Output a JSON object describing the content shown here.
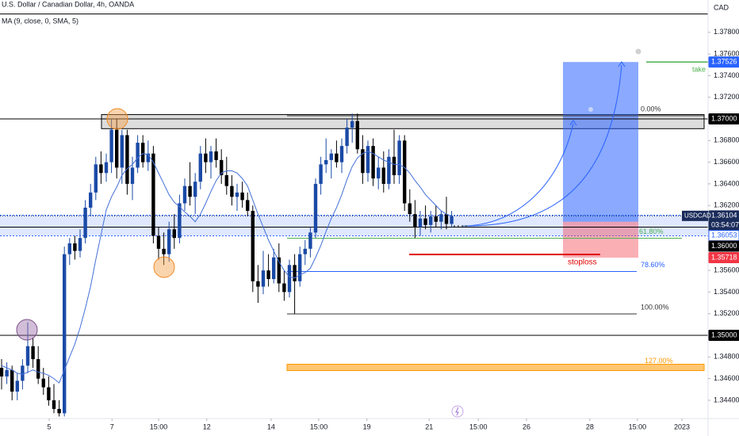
{
  "chart_data": {
    "type": "candlestick",
    "title": "U.S. Dollar / Canadian Dollar, 4h, OANDA",
    "indicator": "MA (9, close, 0, SMA, 5)",
    "currency": "CAD",
    "symbol": "USDCAD",
    "countdown": "03:54:07",
    "ylim": [
      1.34231,
      1.38099
    ],
    "xlim": [
      0,
      135
    ],
    "yticks": [
      {
        "value": 1.378,
        "label": "1.37800"
      },
      {
        "value": 1.376,
        "label": "1.37600"
      },
      {
        "value": 1.374,
        "label": "1.37400"
      },
      {
        "value": 1.372,
        "label": "1.37200"
      },
      {
        "value": 1.368,
        "label": "1.36800"
      },
      {
        "value": 1.366,
        "label": "1.36600"
      },
      {
        "value": 1.364,
        "label": "1.36400"
      },
      {
        "value": 1.362,
        "label": "1.36200"
      },
      {
        "value": 1.356,
        "label": "1.35600"
      },
      {
        "value": 1.354,
        "label": "1.35400"
      },
      {
        "value": 1.352,
        "label": "1.35200"
      },
      {
        "value": 1.348,
        "label": "1.34800"
      },
      {
        "value": 1.346,
        "label": "1.34600"
      },
      {
        "value": 1.344,
        "label": "1.34400"
      }
    ],
    "xticks": [
      {
        "value": 9.1,
        "label": "5"
      },
      {
        "value": 21.1,
        "label": "7"
      },
      {
        "value": 30,
        "label": "15:00"
      },
      {
        "value": 39.2,
        "label": "12"
      },
      {
        "value": 51.5,
        "label": "14"
      },
      {
        "value": 60.6,
        "label": "15:00"
      },
      {
        "value": 69.8,
        "label": "19"
      },
      {
        "value": 81.7,
        "label": "21"
      },
      {
        "value": 91.1,
        "label": "15:00"
      },
      {
        "value": 100.3,
        "label": "26"
      },
      {
        "value": 112.4,
        "label": "28"
      },
      {
        "value": 121.5,
        "label": "15:00"
      },
      {
        "value": 130,
        "label": "2023"
      }
    ],
    "up_color": "#1a4aa6",
    "down_color": "#000000",
    "ma_color": "#4470d8",
    "open": [
      1.347,
      1.3462,
      1.3468,
      1.3448,
      1.3458,
      1.3472,
      1.349,
      1.3478,
      1.346,
      1.3452,
      1.344,
      1.3432,
      1.3428,
      1.3575,
      1.3585,
      1.3578,
      1.359,
      1.3618,
      1.3632,
      1.3658,
      1.365,
      1.366,
      1.369,
      1.3655,
      1.3685,
      1.364,
      1.3655,
      1.3678,
      1.366,
      1.3668,
      1.3592,
      1.358,
      1.3575,
      1.3598,
      1.359,
      1.3622,
      1.3638,
      1.3628,
      1.3642,
      1.3668,
      1.366,
      1.367,
      1.3662,
      1.3648,
      1.3638,
      1.3628,
      1.3632,
      1.3625,
      1.3615,
      1.355,
      1.3545,
      1.356,
      1.3552,
      1.3572,
      1.3548,
      1.354,
      1.3565,
      1.355,
      1.3575,
      1.358,
      1.3595,
      1.364,
      1.3658,
      1.3662,
      1.3668,
      1.366,
      1.3675,
      1.3692,
      1.3698,
      1.3672,
      1.365,
      1.3675,
      1.3645,
      1.3655,
      1.364,
      1.3665,
      1.3648,
      1.368,
      1.3622,
      1.3612,
      1.36,
      1.3608,
      1.3602,
      1.361,
      1.3605,
      1.3612,
      1.3603
    ],
    "high": [
      1.3478,
      1.3475,
      1.3472,
      1.3465,
      1.3478,
      1.3512,
      1.3498,
      1.349,
      1.347,
      1.3462,
      1.3455,
      1.344,
      1.3582,
      1.359,
      1.3592,
      1.3598,
      1.3625,
      1.364,
      1.3665,
      1.367,
      1.3668,
      1.37,
      1.37,
      1.369,
      1.369,
      1.3665,
      1.3685,
      1.3685,
      1.368,
      1.3675,
      1.36,
      1.3595,
      1.3605,
      1.3612,
      1.363,
      1.3645,
      1.366,
      1.365,
      1.3675,
      1.3682,
      1.3675,
      1.3682,
      1.3672,
      1.3665,
      1.3648,
      1.364,
      1.3642,
      1.3632,
      1.362,
      1.3565,
      1.3578,
      1.3575,
      1.358,
      1.3585,
      1.356,
      1.357,
      1.3575,
      1.3582,
      1.3588,
      1.36,
      1.3645,
      1.3665,
      1.3682,
      1.3672,
      1.368,
      1.3682,
      1.37,
      1.3705,
      1.3705,
      1.3685,
      1.368,
      1.3682,
      1.3665,
      1.367,
      1.3672,
      1.369,
      1.3685,
      1.3685,
      1.3635,
      1.3625,
      1.3615,
      1.362,
      1.3615,
      1.362,
      1.3615,
      1.3628,
      1.3615
    ],
    "low": [
      1.345,
      1.3455,
      1.344,
      1.344,
      1.345,
      1.3465,
      1.347,
      1.3455,
      1.3445,
      1.3435,
      1.3428,
      1.3425,
      1.3425,
      1.3565,
      1.357,
      1.3572,
      1.3585,
      1.361,
      1.3625,
      1.364,
      1.3642,
      1.365,
      1.3645,
      1.364,
      1.363,
      1.3625,
      1.365,
      1.3655,
      1.3652,
      1.3585,
      1.357,
      1.3565,
      1.3568,
      1.358,
      1.3585,
      1.3615,
      1.362,
      1.3612,
      1.3635,
      1.365,
      1.3645,
      1.3655,
      1.364,
      1.363,
      1.362,
      1.3615,
      1.3618,
      1.361,
      1.354,
      1.353,
      1.3538,
      1.3545,
      1.3548,
      1.354,
      1.3532,
      1.3535,
      1.352,
      1.3545,
      1.3565,
      1.3572,
      1.359,
      1.363,
      1.365,
      1.3645,
      1.3655,
      1.365,
      1.3668,
      1.3678,
      1.3668,
      1.364,
      1.3642,
      1.3638,
      1.3635,
      1.3632,
      1.3635,
      1.364,
      1.364,
      1.3615,
      1.3605,
      1.359,
      1.3592,
      1.3598,
      1.3595,
      1.36,
      1.3598,
      1.3598,
      1.36
    ],
    "close": [
      1.3462,
      1.3468,
      1.3448,
      1.3458,
      1.3472,
      1.349,
      1.3478,
      1.346,
      1.3452,
      1.344,
      1.3432,
      1.3428,
      1.3575,
      1.3585,
      1.3578,
      1.359,
      1.3618,
      1.3632,
      1.3658,
      1.365,
      1.366,
      1.369,
      1.3655,
      1.3685,
      1.364,
      1.3655,
      1.3678,
      1.366,
      1.3668,
      1.3592,
      1.358,
      1.3575,
      1.3598,
      1.359,
      1.3622,
      1.3638,
      1.3628,
      1.3642,
      1.3668,
      1.366,
      1.367,
      1.3662,
      1.3648,
      1.3638,
      1.3628,
      1.3632,
      1.3625,
      1.3615,
      1.355,
      1.3545,
      1.356,
      1.3552,
      1.3572,
      1.3548,
      1.354,
      1.3565,
      1.355,
      1.3575,
      1.358,
      1.3595,
      1.364,
      1.3658,
      1.3662,
      1.3668,
      1.366,
      1.3675,
      1.3692,
      1.3698,
      1.3672,
      1.365,
      1.3675,
      1.3645,
      1.3655,
      1.364,
      1.3665,
      1.3648,
      1.368,
      1.3622,
      1.3612,
      1.36,
      1.3608,
      1.3602,
      1.361,
      1.3605,
      1.3612,
      1.3603,
      1.361
    ],
    "ma": [
      1.3472,
      1.347,
      1.3468,
      1.3465,
      1.3464,
      1.3466,
      1.3468,
      1.3466,
      1.3465,
      1.3463,
      1.346,
      1.3456,
      1.3468,
      1.348,
      1.3492,
      1.3507,
      1.3525,
      1.3545,
      1.357,
      1.3593,
      1.3616,
      1.3628,
      1.3637,
      1.3648,
      1.3654,
      1.3658,
      1.3664,
      1.3668,
      1.3667,
      1.366,
      1.365,
      1.364,
      1.363,
      1.3623,
      1.3619,
      1.3614,
      1.361,
      1.3605,
      1.3612,
      1.3622,
      1.3633,
      1.3643,
      1.365,
      1.3652,
      1.3652,
      1.365,
      1.3645,
      1.3638,
      1.3625,
      1.3612,
      1.36,
      1.3588,
      1.3578,
      1.3568,
      1.356,
      1.3554,
      1.3553,
      1.3556,
      1.3558,
      1.3562,
      1.3572,
      1.3583,
      1.3596,
      1.3608,
      1.3618,
      1.363,
      1.3644,
      1.3656,
      1.3664,
      1.3668,
      1.367,
      1.3668,
      1.3665,
      1.3662,
      1.366,
      1.3658,
      1.3658,
      1.3655,
      1.365,
      1.3643,
      1.3637,
      1.363,
      1.3625,
      1.362,
      1.3615,
      1.3612,
      1.361
    ],
    "hlines": [
      1.3797,
      1.37,
      1.36,
      1.35
    ],
    "zone": [
      1.3592,
      1.3611
    ],
    "resistance_box": [
      1.3691,
      1.3704
    ],
    "fib": {
      "price_0": 1.37029,
      "price_100": 1.35198,
      "levels": [
        {
          "value": 0,
          "label": "0.00%",
          "color": "#333333"
        },
        {
          "value": 61.8,
          "label": "61.80%",
          "color": "#4caf50"
        },
        {
          "value": 78.6,
          "label": "78.60%",
          "color": "#2962ff"
        },
        {
          "value": 100,
          "label": "100.00%",
          "color": "#333333"
        },
        {
          "value": 127,
          "label": "127.00%",
          "color": "#ff9800"
        }
      ]
    },
    "position": {
      "entry": 1.3605,
      "target": 1.37526,
      "stop": 1.35718,
      "target_label": "take",
      "stop_label": "stoploss"
    },
    "price_tags": [
      {
        "price": 1.37526,
        "bg": "#2962ff",
        "fg": "#ffffff"
      },
      {
        "price": {
          "value": 1.37,
          "label": "1.37000"
        },
        "bg": "#000000",
        "fg": "#ffffff"
      },
      {
        "price": 1.36104,
        "bg": "#1a2b5a",
        "fg": "#ffffff"
      },
      {
        "price": 1.36053,
        "bg": "#ffffff",
        "fg": "#2962ff"
      },
      {
        "price": {
          "value": 1.36,
          "label": "1.36000"
        },
        "bg": "#000000",
        "fg": "#ffffff"
      },
      {
        "price": 1.35718,
        "bg": "#f23645",
        "fg": "#ffffff"
      },
      {
        "price": {
          "value": 1.35,
          "label": "1.35000"
        },
        "bg": "#000000",
        "fg": "#ffffff"
      }
    ]
  }
}
